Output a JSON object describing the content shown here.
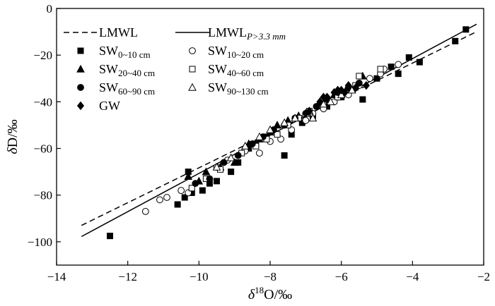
{
  "chart_data": {
    "type": "scatter",
    "title": "",
    "xlabel": "δ¹⁸O/‰",
    "ylabel": "δD/‰",
    "xlim": [
      -14,
      -2
    ],
    "ylim": [
      -110,
      0
    ],
    "xticks": [
      -14,
      -12,
      -10,
      -8,
      -6,
      -4,
      -2
    ],
    "yticks": [
      0,
      -20,
      -40,
      -60,
      -80,
      -100
    ],
    "grid": false,
    "legend_position": "top-left",
    "lines": [
      {
        "name": "LMWL",
        "style": "dashed",
        "slope": 7.48,
        "intercept": 6.5,
        "x_range": [
          -13.3,
          -2.2
        ]
      },
      {
        "name": "LMWL",
        "name_sub": "P>3.3 mm",
        "style": "solid",
        "slope": 8.2,
        "intercept": 11.3,
        "x_range": [
          -13.3,
          -2.2
        ]
      }
    ],
    "series": [
      {
        "name": "SW",
        "name_sub": "0~10 cm",
        "marker": "filled-square",
        "points": [
          [
            -12.5,
            -97.5
          ],
          [
            -10.6,
            -84
          ],
          [
            -10.4,
            -81
          ],
          [
            -10.2,
            -79
          ],
          [
            -10.3,
            -70
          ],
          [
            -9.9,
            -78
          ],
          [
            -9.7,
            -75
          ],
          [
            -9.5,
            -74
          ],
          [
            -9.1,
            -70
          ],
          [
            -8.9,
            -66
          ],
          [
            -8.6,
            -60
          ],
          [
            -8.4,
            -58
          ],
          [
            -8.1,
            -55
          ],
          [
            -7.6,
            -63
          ],
          [
            -7.4,
            -54
          ],
          [
            -7.1,
            -49
          ],
          [
            -6.8,
            -46
          ],
          [
            -6.4,
            -42
          ],
          [
            -6.0,
            -38
          ],
          [
            -5.7,
            -35
          ],
          [
            -5.4,
            -39
          ],
          [
            -5.0,
            -30
          ],
          [
            -4.6,
            -25
          ],
          [
            -4.4,
            -28
          ],
          [
            -4.1,
            -21
          ],
          [
            -3.8,
            -23
          ],
          [
            -2.8,
            -14
          ],
          [
            -2.5,
            -9
          ]
        ]
      },
      {
        "name": "SW",
        "name_sub": "10~20 cm",
        "marker": "open-circle",
        "points": [
          [
            -11.5,
            -87
          ],
          [
            -11.1,
            -82
          ],
          [
            -10.9,
            -81
          ],
          [
            -10.5,
            -78
          ],
          [
            -10.3,
            -79
          ],
          [
            -9.5,
            -68
          ],
          [
            -9.2,
            -65
          ],
          [
            -8.7,
            -61
          ],
          [
            -8.3,
            -62
          ],
          [
            -8.0,
            -57
          ],
          [
            -7.7,
            -56
          ],
          [
            -7.4,
            -52
          ],
          [
            -7.0,
            -48
          ],
          [
            -6.8,
            -45
          ],
          [
            -6.5,
            -43
          ],
          [
            -6.2,
            -40
          ],
          [
            -5.8,
            -37
          ],
          [
            -5.5,
            -33
          ],
          [
            -5.2,
            -30
          ],
          [
            -4.9,
            -28
          ],
          [
            -4.8,
            -26
          ],
          [
            -4.4,
            -24
          ]
        ]
      },
      {
        "name": "SW",
        "name_sub": "20~40 cm",
        "marker": "filled-triangle",
        "points": [
          [
            -10.3,
            -72
          ],
          [
            -10.0,
            -74
          ],
          [
            -9.8,
            -70
          ],
          [
            -9.4,
            -68
          ],
          [
            -9.0,
            -66
          ],
          [
            -8.6,
            -58
          ],
          [
            -8.3,
            -56
          ],
          [
            -8.0,
            -53
          ],
          [
            -7.8,
            -50
          ],
          [
            -7.5,
            -48
          ],
          [
            -7.2,
            -46
          ],
          [
            -6.9,
            -44
          ],
          [
            -6.6,
            -40
          ],
          [
            -6.2,
            -37
          ],
          [
            -5.8,
            -33
          ],
          [
            -5.4,
            -29
          ]
        ]
      },
      {
        "name": "SW",
        "name_sub": "40~60 cm",
        "marker": "open-square",
        "points": [
          [
            -10.2,
            -77
          ],
          [
            -9.8,
            -73
          ],
          [
            -9.4,
            -69
          ],
          [
            -8.8,
            -62
          ],
          [
            -8.4,
            -59
          ],
          [
            -8.1,
            -56
          ],
          [
            -7.8,
            -54
          ],
          [
            -7.5,
            -50
          ],
          [
            -7.2,
            -47
          ],
          [
            -6.9,
            -44
          ],
          [
            -6.5,
            -41
          ],
          [
            -6.1,
            -38
          ],
          [
            -5.6,
            -33
          ],
          [
            -5.5,
            -29
          ],
          [
            -4.9,
            -26
          ]
        ]
      },
      {
        "name": "SW",
        "name_sub": "60~90 cm",
        "marker": "filled-circle",
        "points": [
          [
            -10.1,
            -75
          ],
          [
            -9.7,
            -73
          ],
          [
            -9.3,
            -66
          ],
          [
            -8.9,
            -63
          ],
          [
            -8.5,
            -58
          ],
          [
            -8.2,
            -55
          ],
          [
            -7.9,
            -52
          ],
          [
            -7.6,
            -50
          ],
          [
            -7.3,
            -47
          ],
          [
            -7.0,
            -45
          ],
          [
            -6.7,
            -42
          ],
          [
            -6.4,
            -39
          ],
          [
            -6.1,
            -36
          ],
          [
            -5.8,
            -34
          ],
          [
            -5.5,
            -32
          ]
        ]
      },
      {
        "name": "SW",
        "name_sub": "90~130 cm",
        "marker": "open-triangle",
        "points": [
          [
            -9.5,
            -68
          ],
          [
            -9.1,
            -64
          ],
          [
            -8.7,
            -59
          ],
          [
            -8.3,
            -55
          ],
          [
            -8.0,
            -52
          ],
          [
            -7.6,
            -49
          ],
          [
            -7.3,
            -47
          ],
          [
            -7.0,
            -45
          ],
          [
            -6.8,
            -47
          ],
          [
            -6.5,
            -41
          ],
          [
            -6.3,
            -40
          ],
          [
            -6.0,
            -37
          ],
          [
            -5.7,
            -35
          ]
        ]
      },
      {
        "name": "GW",
        "marker": "filled-diamond",
        "points": [
          [
            -6.9,
            -44
          ],
          [
            -6.6,
            -40
          ],
          [
            -6.4,
            -38
          ],
          [
            -6.2,
            -36
          ],
          [
            -6.0,
            -35
          ],
          [
            -5.8,
            -33
          ],
          [
            -5.6,
            -34
          ],
          [
            -5.3,
            -33
          ],
          [
            -6.5,
            -38
          ],
          [
            -6.1,
            -35
          ],
          [
            -5.9,
            -36
          ],
          [
            -7.0,
            -45
          ]
        ]
      }
    ]
  }
}
